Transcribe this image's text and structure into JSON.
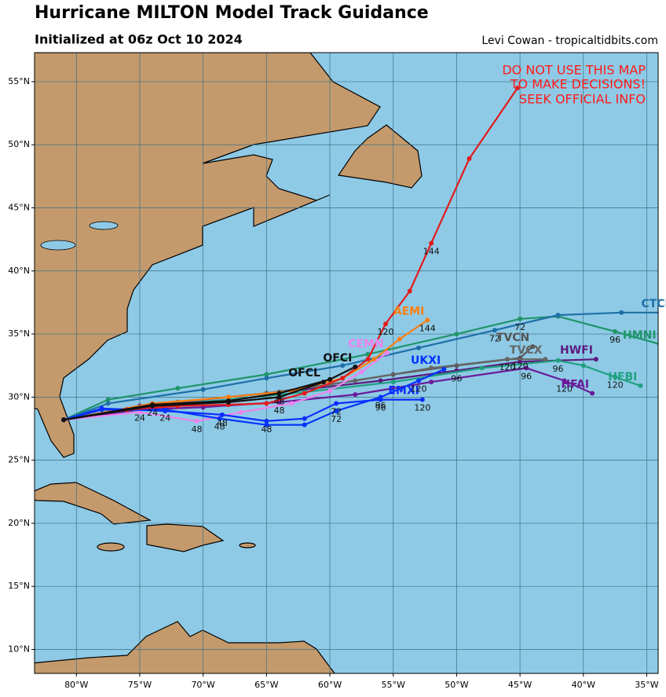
{
  "header": {
    "title": "Hurricane MILTON Model Track Guidance",
    "subtitle": "Initialized at 06z Oct 10 2024",
    "credit": "Levi Cowan - tropicaltidbits.com"
  },
  "warning": [
    "DO NOT USE THIS MAP",
    "TO MAKE DECISIONS!",
    "SEEK OFFICIAL INFO"
  ],
  "map": {
    "lon_range": [
      -83.3,
      -34.1
    ],
    "lat_range": [
      8.1,
      57.3
    ],
    "lon_ticks": [
      {
        "value": -80,
        "label": "80°W"
      },
      {
        "value": -75,
        "label": "75°W"
      },
      {
        "value": -70,
        "label": "70°W"
      },
      {
        "value": -65,
        "label": "65°W"
      },
      {
        "value": -60,
        "label": "60°W"
      },
      {
        "value": -55,
        "label": "55°W"
      },
      {
        "value": -50,
        "label": "50°W"
      },
      {
        "value": -45,
        "label": "45°W"
      },
      {
        "value": -40,
        "label": "40°W"
      },
      {
        "value": -35,
        "label": "35°W"
      }
    ],
    "lat_ticks": [
      {
        "value": 10,
        "label": "10°N"
      },
      {
        "value": 15,
        "label": "15°N"
      },
      {
        "value": 20,
        "label": "20°N"
      },
      {
        "value": 25,
        "label": "25°N"
      },
      {
        "value": 30,
        "label": "30°N"
      },
      {
        "value": 35,
        "label": "35°N"
      },
      {
        "value": 40,
        "label": "40°N"
      },
      {
        "value": 45,
        "label": "45°N"
      },
      {
        "value": 50,
        "label": "50°N"
      },
      {
        "value": 55,
        "label": "55°N"
      }
    ],
    "tracks": [
      {
        "color": "#5b1a7e",
        "name": "HWFI",
        "lon": [
          -81,
          -75,
          -68,
          -62,
          -56,
          -50,
          -45,
          -39
        ],
        "lat": [
          28.2,
          29.3,
          30,
          30.6,
          31.3,
          32.1,
          32.8,
          33
        ],
        "hours": [
          null,
          null,
          null,
          null,
          null,
          96,
          null,
          null
        ]
      },
      {
        "color": "#6a1b9a",
        "name": "HFAI",
        "lon": [
          -81,
          -75,
          -70,
          -64,
          -58,
          -52,
          -44.5,
          -41.5,
          -39.3
        ],
        "lat": [
          28.2,
          29,
          29.2,
          29.6,
          30.2,
          31.2,
          32.3,
          31.3,
          30.3
        ],
        "hours": [
          null,
          24,
          null,
          48,
          null,
          null,
          96,
          120,
          null
        ]
      },
      {
        "color": "#20a080",
        "name": "HFBI",
        "lon": [
          -81,
          -75,
          -68,
          -62,
          -55,
          -48,
          -42,
          -40,
          -37.5,
          -35.5
        ],
        "lat": [
          28.2,
          29.2,
          29.8,
          30.4,
          31.2,
          32.3,
          32.9,
          32.5,
          31.6,
          30.9
        ],
        "hours": [
          null,
          null,
          null,
          null,
          null,
          null,
          96,
          null,
          120,
          null
        ]
      },
      {
        "color": "#20956a",
        "name": "HMNI",
        "lon": [
          -81,
          -77.5,
          -72,
          -65,
          -57,
          -50,
          -45,
          -42,
          -37.5,
          -34
        ],
        "lat": [
          28.2,
          29.8,
          30.7,
          31.8,
          33.4,
          35,
          36.2,
          36.4,
          35.2,
          34.2
        ],
        "hours": [
          null,
          null,
          null,
          null,
          null,
          null,
          72,
          null,
          96,
          null
        ]
      },
      {
        "color": "#1f6fa8",
        "name": "CTCI",
        "lon": [
          -81,
          -77.5,
          -70,
          -65,
          -59,
          -53,
          -47,
          -42,
          -37,
          -33
        ],
        "lat": [
          28.2,
          29.5,
          30.6,
          31.5,
          32.5,
          33.9,
          35.3,
          36.5,
          36.7,
          36.7
        ],
        "hours": [
          null,
          null,
          null,
          null,
          null,
          null,
          72,
          null,
          null,
          null
        ]
      },
      {
        "color": "#555555",
        "name": "TVCN",
        "lon": [
          -81,
          -72,
          -65,
          -60,
          -55,
          -50,
          -45,
          -44
        ],
        "lat": [
          28.2,
          29.6,
          30.3,
          31,
          31.8,
          32.5,
          33.1,
          34
        ],
        "hours": [
          null,
          null,
          null,
          null,
          null,
          null,
          120,
          null
        ]
      },
      {
        "color": "#666666",
        "name": "TVCX",
        "lon": [
          -81,
          -72,
          -64,
          -58,
          -52,
          -46,
          -43
        ],
        "lat": [
          28.2,
          29.6,
          30.4,
          31.3,
          32.3,
          33,
          33
        ],
        "hours": [
          null,
          null,
          null,
          null,
          null,
          120,
          null
        ]
      },
      {
        "color": "#ff7f0e",
        "name": "AEMI",
        "lon": [
          -81,
          -74,
          -68,
          -63,
          -59,
          -56.5,
          -54.5,
          -52.3
        ],
        "lat": [
          28.2,
          29.5,
          30,
          30.5,
          31.5,
          33,
          34.6,
          36.1
        ],
        "hours": [
          null,
          null,
          null,
          null,
          null,
          null,
          null,
          144
        ]
      },
      {
        "color": "#ee82ee",
        "name": "CEMN",
        "lon": [
          -81,
          -75,
          -70.5,
          -67,
          -63,
          -60,
          -57.5,
          -55.5
        ],
        "lat": [
          28.2,
          28.8,
          28.1,
          28.8,
          29.5,
          30.5,
          32,
          33.5
        ],
        "hours": [
          null,
          null,
          48,
          null,
          null,
          null,
          null,
          null
        ]
      },
      {
        "color": "#0a2cff",
        "name": "EMXI",
        "lon": [
          -81,
          -78,
          -73,
          -68.5,
          -65,
          -62,
          -59.5,
          -56,
          -52.7
        ],
        "lat": [
          28.2,
          29.1,
          28.9,
          28.6,
          28.1,
          28.3,
          29.5,
          29.8,
          29.8
        ],
        "hours": [
          null,
          null,
          null,
          48,
          48,
          null,
          72,
          96,
          120
        ]
      },
      {
        "color": "#0033ff",
        "name": "UKXI",
        "lon": [
          -81,
          -78,
          -73,
          -68.7,
          -65,
          -62,
          -59.5,
          -56,
          -53,
          -51
        ],
        "lat": [
          28.2,
          29,
          29,
          28.3,
          27.8,
          27.8,
          28.9,
          30,
          31.3,
          32.2
        ],
        "hours": [
          null,
          null,
          24,
          48,
          null,
          null,
          72,
          96,
          120,
          null
        ]
      },
      {
        "color": "#e31a1c",
        "lon": [
          -81,
          -76,
          -72,
          -68,
          -65,
          -62,
          -59,
          -57,
          -55.6,
          -53.7,
          -52,
          -49,
          -45.2
        ],
        "lat": [
          28.2,
          29,
          29.3,
          29.4,
          29.5,
          30.3,
          31.5,
          33,
          35.8,
          38.4,
          42.2,
          48.9,
          54.5
        ],
        "hours": [
          null,
          null,
          null,
          null,
          null,
          null,
          null,
          null,
          120,
          null,
          144,
          null,
          null
        ]
      },
      {
        "color": "#111111",
        "name": "OFCL",
        "lon": [
          -81,
          -74,
          -68,
          -64,
          -60.5
        ],
        "lat": [
          28.2,
          29.3,
          29.6,
          30,
          31.2
        ],
        "hours": [
          null,
          null,
          null,
          null,
          null
        ]
      },
      {
        "color": "#111111",
        "name": "OFCI",
        "lon": [
          -81,
          -74,
          -68,
          -64,
          -60,
          -58
        ],
        "lat": [
          28.2,
          29.4,
          29.7,
          30.3,
          31.4,
          32.4
        ],
        "hours": [
          null,
          24,
          null,
          48,
          null,
          null
        ]
      }
    ]
  }
}
